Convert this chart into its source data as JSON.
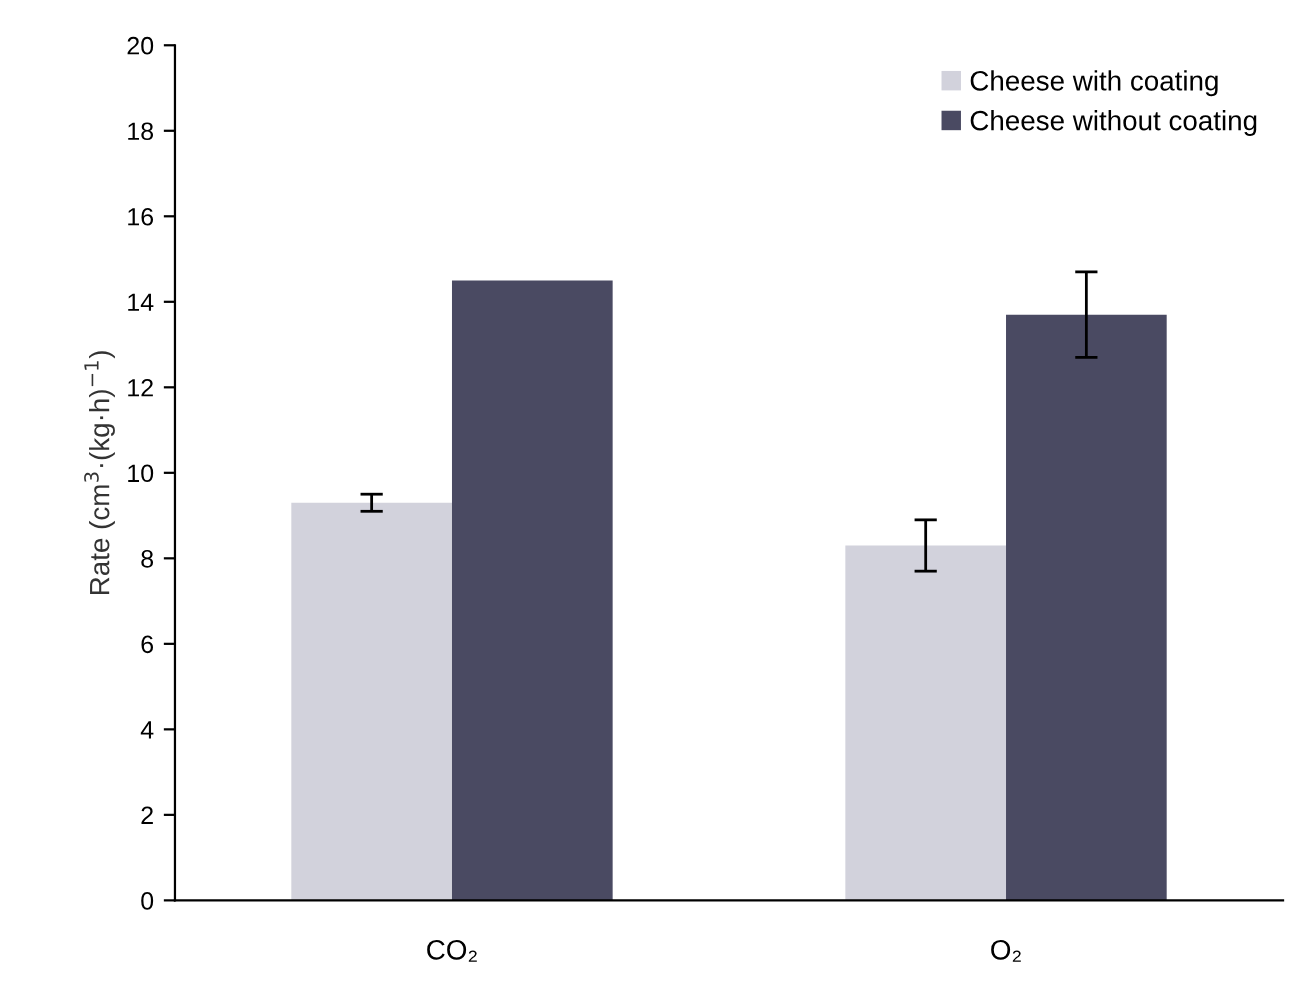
{
  "chart_data": {
    "type": "bar",
    "ylabel": "Rate (cm$^{3}$·(kg·h)$^{−1}$)",
    "categories": [
      "CO₂",
      "O₂"
    ],
    "series": [
      {
        "name": "Cheese with coating",
        "color": "#d2d2dc",
        "values": [
          9.3,
          8.3
        ],
        "errors": [
          0.2,
          0.6
        ]
      },
      {
        "name": "Cheese without coating",
        "color": "#4a4a62",
        "values": [
          14.5,
          13.7
        ],
        "errors": [
          null,
          1.0
        ]
      }
    ],
    "ylim": [
      0,
      20
    ],
    "yticks": [
      0,
      2,
      4,
      6,
      8,
      10,
      12,
      14,
      16,
      18,
      20
    ],
    "grid": false,
    "legend": "top right"
  }
}
